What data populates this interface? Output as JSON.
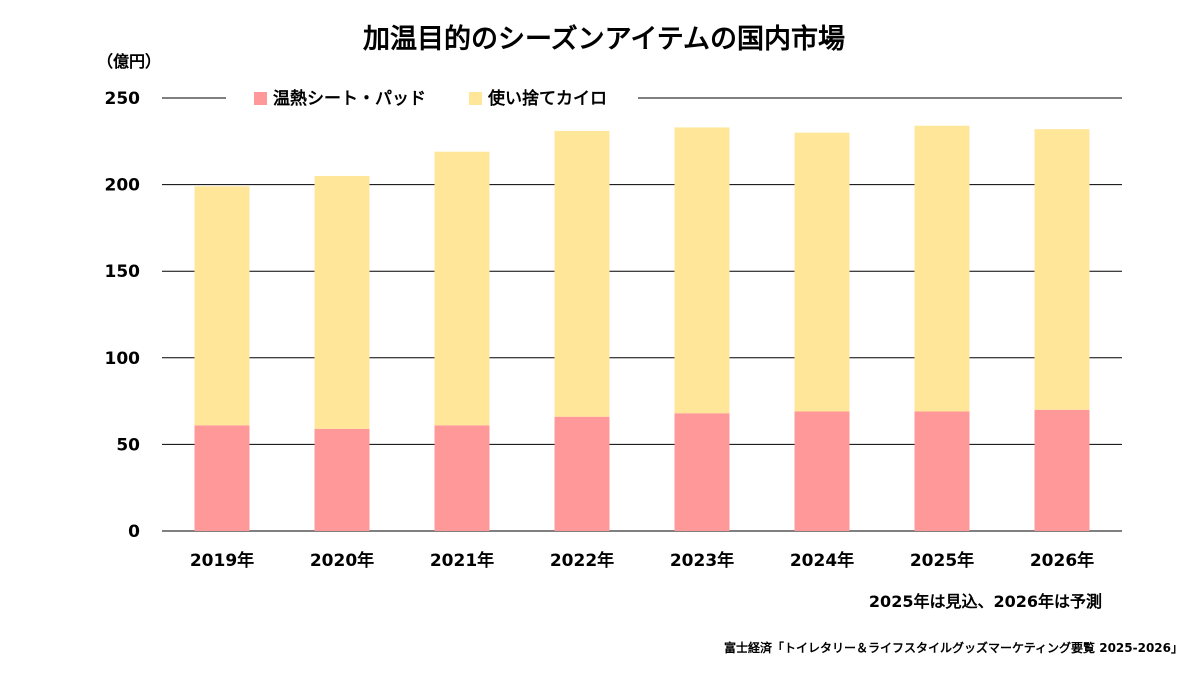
{
  "chart_data": {
    "type": "bar",
    "stacked": true,
    "title": "加温目的のシーズンアイテムの国内市場",
    "unit_label": "（億円）",
    "categories": [
      "2019年",
      "2020年",
      "2021年",
      "2022年",
      "2023年",
      "2024年",
      "2025年",
      "2026年"
    ],
    "series": [
      {
        "name": "温熱シート・パッド",
        "color": "#ff9999",
        "values": [
          61,
          59,
          61,
          66,
          68,
          69,
          69,
          70
        ]
      },
      {
        "name": "使い捨てカイロ",
        "color": "#ffe699",
        "values": [
          138,
          146,
          158,
          165,
          165,
          161,
          165,
          162
        ]
      }
    ],
    "ylim": [
      0,
      250
    ],
    "yticks": [
      0,
      50,
      100,
      150,
      200,
      250
    ],
    "grid": true,
    "legend_position": "top",
    "note": "2025年は見込、2026年は予測",
    "source": "富士経済「トイレタリー＆ライフスタイルグッズマーケティング要覧 2025-2026」"
  }
}
